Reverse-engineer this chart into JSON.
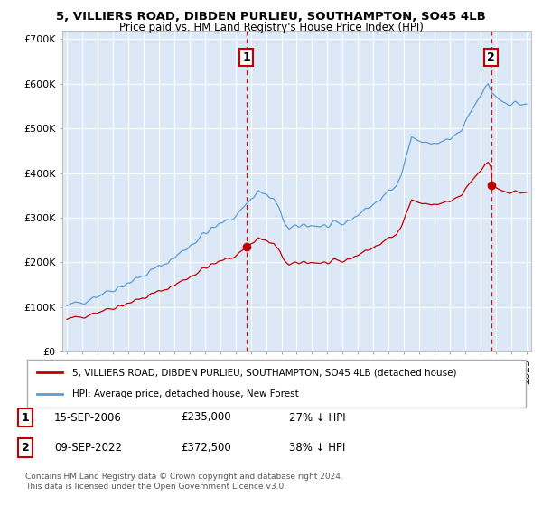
{
  "title_line1": "5, VILLIERS ROAD, DIBDEN PURLIEU, SOUTHAMPTON, SO45 4LB",
  "title_line2": "Price paid vs. HM Land Registry's House Price Index (HPI)",
  "ylim": [
    0,
    720000
  ],
  "yticks": [
    0,
    100000,
    200000,
    300000,
    400000,
    500000,
    600000,
    700000
  ],
  "ytick_labels": [
    "£0",
    "£100K",
    "£200K",
    "£300K",
    "£400K",
    "£500K",
    "£600K",
    "£700K"
  ],
  "hpi_color": "#5b9bd5",
  "price_color": "#c00000",
  "vline_color": "#c00000",
  "grid_color": "#c8d8e8",
  "chart_bg_color": "#dce8f5",
  "background_color": "#ffffff",
  "legend_label_1": "5, VILLIERS ROAD, DIBDEN PURLIEU, SOUTHAMPTON, SO45 4LB (detached house)",
  "legend_label_2": "HPI: Average price, detached house, New Forest",
  "sale1_label": "1",
  "sale1_date": "15-SEP-2006",
  "sale1_price": "£235,000",
  "sale1_hpi": "27% ↓ HPI",
  "sale2_label": "2",
  "sale2_date": "09-SEP-2022",
  "sale2_price": "£372,500",
  "sale2_hpi": "38% ↓ HPI",
  "footer": "Contains HM Land Registry data © Crown copyright and database right 2024.\nThis data is licensed under the Open Government Licence v3.0.",
  "sale1_year": 2006.71,
  "sale1_value": 235000,
  "sale2_year": 2022.69,
  "sale2_value": 372500,
  "xlim_left": 1994.7,
  "xlim_right": 2025.3
}
